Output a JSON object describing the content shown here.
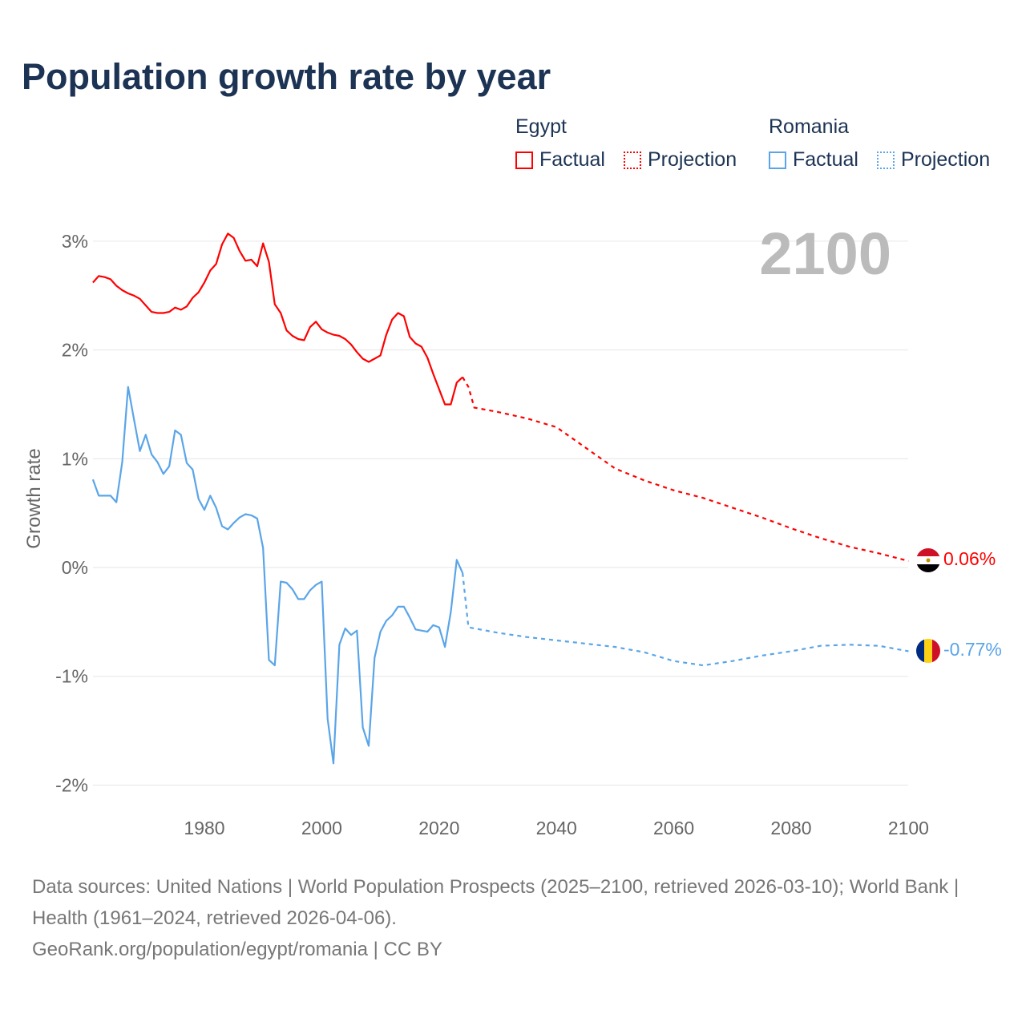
{
  "title": "Population growth rate by year",
  "legend": {
    "groups": [
      {
        "name": "Egypt",
        "color": "#ff0000",
        "factual": "Factual",
        "projection": "Projection"
      },
      {
        "name": "Romania",
        "color": "#5aa5e8",
        "factual": "Factual",
        "projection": "Projection"
      }
    ]
  },
  "year_display": "2100",
  "footer": {
    "sources": "Data sources: United Nations | World Population Prospects (2025–2100, retrieved 2026-03-10); World Bank | Health (1961–2024, retrieved 2026-04-06).",
    "credit": "GeoRank.org/population/egypt/romania | CC BY"
  },
  "chart_data": {
    "type": "line",
    "title": "Population growth rate by year",
    "xlabel": "",
    "ylabel": "Growth rate",
    "xlim": [
      1961,
      2100
    ],
    "ylim": [
      -2.2,
      3.3
    ],
    "xticks": [
      1980,
      2000,
      2020,
      2040,
      2060,
      2080,
      2100
    ],
    "yticks": [
      3,
      2,
      1,
      0,
      -1,
      -2
    ],
    "ytick_labels": [
      "3%",
      "2%",
      "1%",
      "0%",
      "-1%",
      "-2%"
    ],
    "grid": true,
    "legend_position": "top-right",
    "series": [
      {
        "name": "Egypt",
        "color": "#ff0000",
        "end_label": "0.06%",
        "flag": "egypt",
        "factual": {
          "x": [
            1961,
            1962,
            1963,
            1964,
            1965,
            1966,
            1967,
            1968,
            1969,
            1970,
            1971,
            1972,
            1973,
            1974,
            1975,
            1976,
            1977,
            1978,
            1979,
            1980,
            1981,
            1982,
            1983,
            1984,
            1985,
            1986,
            1987,
            1988,
            1989,
            1990,
            1991,
            1992,
            1993,
            1994,
            1995,
            1996,
            1997,
            1998,
            1999,
            2000,
            2001,
            2002,
            2003,
            2004,
            2005,
            2006,
            2007,
            2008,
            2009,
            2010,
            2011,
            2012,
            2013,
            2014,
            2015,
            2016,
            2017,
            2018,
            2019,
            2020,
            2021,
            2022,
            2023,
            2024
          ],
          "y": [
            2.62,
            2.68,
            2.67,
            2.65,
            2.59,
            2.55,
            2.52,
            2.5,
            2.47,
            2.41,
            2.35,
            2.34,
            2.34,
            2.35,
            2.39,
            2.37,
            2.4,
            2.48,
            2.53,
            2.62,
            2.73,
            2.79,
            2.97,
            3.07,
            3.03,
            2.91,
            2.82,
            2.83,
            2.77,
            2.98,
            2.81,
            2.42,
            2.34,
            2.18,
            2.13,
            2.1,
            2.09,
            2.21,
            2.26,
            2.19,
            2.16,
            2.14,
            2.13,
            2.1,
            2.05,
            1.98,
            1.92,
            1.89,
            1.92,
            1.95,
            2.14,
            2.28,
            2.34,
            2.31,
            2.12,
            2.06,
            2.03,
            1.93,
            1.78,
            1.64,
            1.5,
            1.5,
            1.7,
            1.75
          ]
        },
        "projection": {
          "x": [
            2024,
            2025,
            2026,
            2030,
            2035,
            2040,
            2045,
            2050,
            2055,
            2060,
            2065,
            2070,
            2075,
            2080,
            2085,
            2090,
            2095,
            2100
          ],
          "y": [
            1.75,
            1.66,
            1.47,
            1.43,
            1.37,
            1.29,
            1.1,
            0.91,
            0.8,
            0.71,
            0.64,
            0.55,
            0.46,
            0.36,
            0.27,
            0.19,
            0.13,
            0.06
          ]
        }
      },
      {
        "name": "Romania",
        "color": "#5aa5e8",
        "end_label": "-0.77%",
        "flag": "romania",
        "factual": {
          "x": [
            1961,
            1962,
            1963,
            1964,
            1965,
            1966,
            1967,
            1968,
            1969,
            1970,
            1971,
            1972,
            1973,
            1974,
            1975,
            1976,
            1977,
            1978,
            1979,
            1980,
            1981,
            1982,
            1983,
            1984,
            1985,
            1986,
            1987,
            1988,
            1989,
            1990,
            1991,
            1992,
            1993,
            1994,
            1995,
            1996,
            1997,
            1998,
            1999,
            2000,
            2001,
            2002,
            2003,
            2004,
            2005,
            2006,
            2007,
            2008,
            2009,
            2010,
            2011,
            2012,
            2013,
            2014,
            2015,
            2016,
            2017,
            2018,
            2019,
            2020,
            2021,
            2022,
            2023,
            2024
          ],
          "y": [
            0.81,
            0.66,
            0.66,
            0.66,
            0.6,
            0.97,
            1.66,
            1.36,
            1.07,
            1.22,
            1.04,
            0.97,
            0.86,
            0.93,
            1.26,
            1.22,
            0.96,
            0.9,
            0.63,
            0.53,
            0.66,
            0.55,
            0.38,
            0.35,
            0.41,
            0.46,
            0.49,
            0.48,
            0.45,
            0.18,
            -0.85,
            -0.9,
            -0.13,
            -0.14,
            -0.2,
            -0.29,
            -0.29,
            -0.21,
            -0.16,
            -0.13,
            -1.39,
            -1.8,
            -0.71,
            -0.56,
            -0.62,
            -0.58,
            -1.47,
            -1.64,
            -0.83,
            -0.59,
            -0.49,
            -0.44,
            -0.36,
            -0.36,
            -0.46,
            -0.57,
            -0.58,
            -0.59,
            -0.53,
            -0.55,
            -0.73,
            -0.41,
            0.07,
            -0.05
          ]
        },
        "projection": {
          "x": [
            2024,
            2025,
            2030,
            2035,
            2040,
            2045,
            2050,
            2055,
            2060,
            2065,
            2070,
            2075,
            2080,
            2085,
            2090,
            2095,
            2100
          ],
          "y": [
            -0.05,
            -0.55,
            -0.6,
            -0.64,
            -0.67,
            -0.7,
            -0.73,
            -0.78,
            -0.86,
            -0.9,
            -0.86,
            -0.81,
            -0.77,
            -0.72,
            -0.71,
            -0.72,
            -0.77
          ]
        }
      }
    ]
  }
}
